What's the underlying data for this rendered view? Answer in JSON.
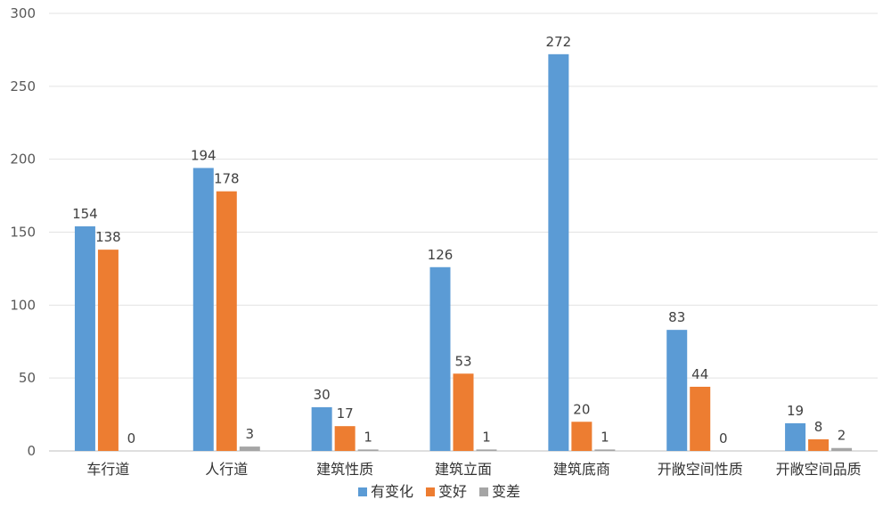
{
  "chart_data": {
    "type": "bar",
    "categories": [
      "车行道",
      "人行道",
      "建筑性质",
      "建筑立面",
      "建筑底商",
      "开敞空间性质",
      "开敞空间品质"
    ],
    "series": [
      {
        "name": "有变化",
        "color": "#5b9bd5",
        "values": [
          154,
          194,
          30,
          126,
          272,
          83,
          19
        ]
      },
      {
        "name": "变好",
        "color": "#ed7d31",
        "values": [
          138,
          178,
          17,
          53,
          20,
          44,
          8
        ]
      },
      {
        "name": "变差",
        "color": "#a5a5a5",
        "values": [
          0,
          3,
          1,
          1,
          1,
          0,
          2
        ]
      }
    ],
    "ylim": [
      0,
      300
    ],
    "yticks": [
      0,
      50,
      100,
      150,
      200,
      250,
      300
    ],
    "grid": true,
    "legend": "bottom"
  }
}
